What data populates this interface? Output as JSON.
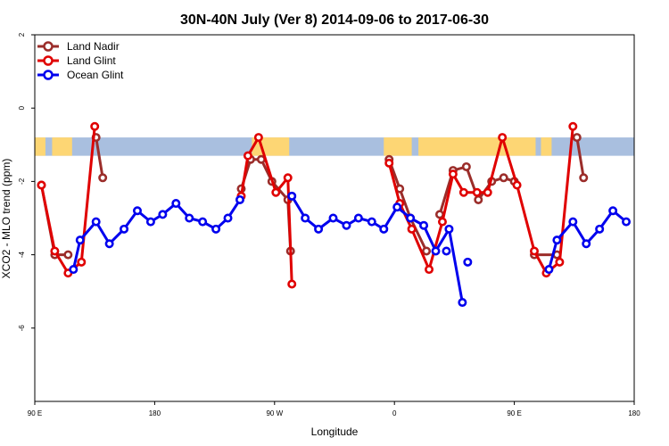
{
  "chart_data": {
    "type": "line",
    "title": "30N-40N July (Ver 8)   2014-09-06 to 2017-06-30",
    "xlabel": "Longitude",
    "ylabel": "XCO2 - MLO trend (ppm)",
    "xlim": [
      90,
      540
    ],
    "ylim": [
      -8,
      2
    ],
    "x_ticks": [
      {
        "value": 90,
        "label": "90 E"
      },
      {
        "value": 180,
        "label": "180"
      },
      {
        "value": 270,
        "label": "90 W"
      },
      {
        "value": 360,
        "label": "0"
      },
      {
        "value": 450,
        "label": "90 E"
      },
      {
        "value": 540,
        "label": "180"
      }
    ],
    "y_ticks": [
      {
        "value": 2,
        "label": "2"
      },
      {
        "value": 0,
        "label": "0"
      },
      {
        "value": -2,
        "label": "-2"
      },
      {
        "value": -4,
        "label": "-4"
      },
      {
        "value": -6,
        "label": "-6"
      }
    ],
    "land_mask_band": {
      "y_top": -0.8,
      "y_bottom": -1.3,
      "ocean_color": "#a9bfdf",
      "land_color": "#fdd674"
    },
    "legend_position": "top-left",
    "series": [
      {
        "name": "Land Nadir",
        "color": "#9b2d2a",
        "segments": [
          [
            [
              95,
              -2.1
            ],
            [
              105,
              -4.0
            ],
            [
              115,
              -4.0
            ]
          ],
          [
            [
              136,
              -0.8
            ],
            [
              141,
              -1.9
            ]
          ],
          [
            [
              245,
              -2.2
            ],
            [
              252,
              -1.4
            ],
            [
              260,
              -1.4
            ],
            [
              268,
              -2.0
            ],
            [
              280,
              -2.5
            ],
            [
              282,
              -3.9
            ]
          ],
          [
            [
              356,
              -1.4
            ],
            [
              364,
              -2.2
            ],
            [
              372,
              -3.0
            ],
            [
              384,
              -3.9
            ]
          ],
          [
            [
              394,
              -2.9
            ],
            [
              404,
              -1.7
            ],
            [
              414,
              -1.6
            ],
            [
              423,
              -2.5
            ],
            [
              433,
              -2.0
            ],
            [
              442,
              -1.9
            ],
            [
              450,
              -2.0
            ]
          ],
          [
            [
              465,
              -4.0
            ],
            [
              482,
              -4.0
            ]
          ],
          [
            [
              497,
              -0.8
            ],
            [
              502,
              -1.9
            ]
          ]
        ]
      },
      {
        "name": "Land Glint",
        "color": "#e00000",
        "segments": [
          [
            [
              95,
              -2.1
            ],
            [
              105,
              -3.9
            ],
            [
              115,
              -4.5
            ],
            [
              125,
              -4.2
            ],
            [
              135,
              -0.5
            ]
          ],
          [
            [
              245,
              -2.4
            ],
            [
              250,
              -1.3
            ],
            [
              258,
              -0.8
            ],
            [
              271,
              -2.3
            ],
            [
              280,
              -1.9
            ],
            [
              283,
              -4.8
            ]
          ],
          [
            [
              356,
              -1.5
            ],
            [
              364,
              -2.6
            ],
            [
              373,
              -3.3
            ],
            [
              386,
              -4.4
            ],
            [
              396,
              -3.1
            ],
            [
              404,
              -1.8
            ],
            [
              412,
              -2.3
            ],
            [
              422,
              -2.3
            ],
            [
              430,
              -2.3
            ],
            [
              441,
              -0.8
            ],
            [
              452,
              -2.1
            ],
            [
              465,
              -3.9
            ],
            [
              474,
              -4.5
            ],
            [
              484,
              -4.2
            ],
            [
              494,
              -0.5
            ]
          ]
        ]
      },
      {
        "name": "Ocean Glint",
        "color": "#0000ee",
        "segments": [
          [
            [
              119,
              -4.4
            ],
            [
              124,
              -3.6
            ],
            [
              136,
              -3.1
            ],
            [
              146,
              -3.7
            ],
            [
              157,
              -3.3
            ],
            [
              167,
              -2.8
            ],
            [
              177,
              -3.1
            ],
            [
              186,
              -2.9
            ],
            [
              196,
              -2.6
            ],
            [
              206,
              -3.0
            ],
            [
              216,
              -3.1
            ],
            [
              226,
              -3.3
            ],
            [
              235,
              -3.0
            ],
            [
              244,
              -2.5
            ]
          ],
          [
            [
              283,
              -2.4
            ],
            [
              293,
              -3.0
            ],
            [
              303,
              -3.3
            ],
            [
              314,
              -3.0
            ],
            [
              324,
              -3.2
            ],
            [
              333,
              -3.0
            ],
            [
              343,
              -3.1
            ],
            [
              352,
              -3.3
            ],
            [
              362,
              -2.7
            ],
            [
              372,
              -3.0
            ],
            [
              382,
              -3.2
            ],
            [
              391,
              -3.9
            ],
            [
              401,
              -3.3
            ],
            [
              411,
              -5.3
            ]
          ],
          [
            [
              399,
              -3.9
            ]
          ],
          [
            [
              415,
              -4.2
            ]
          ],
          [
            [
              476,
              -4.4
            ],
            [
              482,
              -3.6
            ],
            [
              494,
              -3.1
            ],
            [
              504,
              -3.7
            ],
            [
              514,
              -3.3
            ],
            [
              524,
              -2.8
            ],
            [
              534,
              -3.1
            ]
          ]
        ]
      }
    ]
  }
}
